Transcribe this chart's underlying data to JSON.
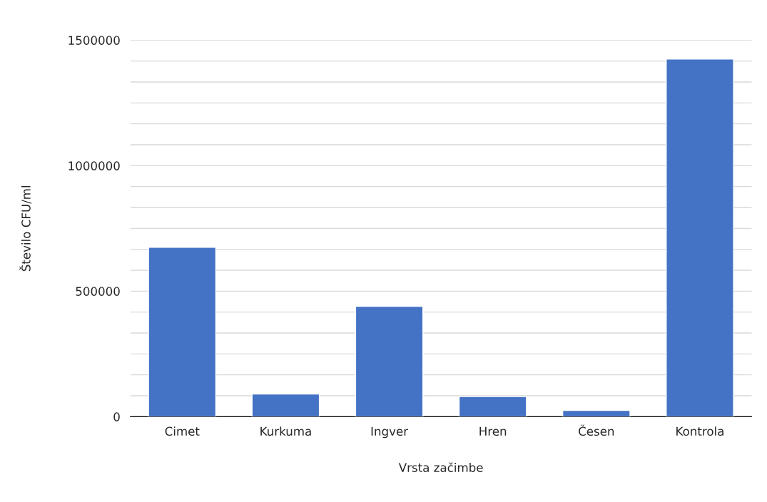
{
  "chart_data": {
    "type": "bar",
    "xlabel": "Vrsta začimbe",
    "ylabel": "Število CFU/ml",
    "categories": [
      "Cimet",
      "Kurkuma",
      "Ingver",
      "Hren",
      "Česen",
      "Kontrola"
    ],
    "values": [
      675000,
      90000,
      440000,
      80000,
      25000,
      1425000
    ],
    "color": "#4472c4",
    "ylim": [
      0,
      1500000
    ],
    "yticks": [
      0,
      {
        "value": 83333,
        "label": null
      },
      {
        "value": 166667,
        "label": null
      },
      {
        "value": 250000,
        "label": null
      },
      {
        "value": 333333,
        "label": null
      },
      {
        "value": 416667,
        "label": null
      },
      500000,
      {
        "value": 583333,
        "label": null
      },
      {
        "value": 666667,
        "label": null
      },
      {
        "value": 750000,
        "label": null
      },
      {
        "value": 833333,
        "label": null
      },
      {
        "value": 916667,
        "label": null
      },
      1000000,
      {
        "value": 1083333,
        "label": null
      },
      {
        "value": 1166667,
        "label": null
      },
      {
        "value": 1250000,
        "label": null
      },
      {
        "value": 1333333,
        "label": null
      },
      {
        "value": 1416667,
        "label": null
      },
      1500000
    ],
    "grid": "y"
  }
}
